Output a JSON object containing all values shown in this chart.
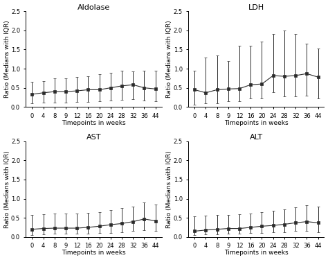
{
  "timepoints": [
    0,
    4,
    8,
    9,
    12,
    16,
    20,
    24,
    28,
    32,
    36,
    44
  ],
  "subplots": [
    {
      "title": "Aldolase",
      "medians": [
        0.33,
        0.37,
        0.4,
        0.4,
        0.42,
        0.45,
        0.45,
        0.5,
        0.55,
        0.58,
        0.5,
        0.47
      ],
      "iqr_low": [
        0.1,
        0.12,
        0.12,
        0.12,
        0.13,
        0.14,
        0.15,
        0.17,
        0.18,
        0.2,
        0.17,
        0.15
      ],
      "iqr_high": [
        0.65,
        0.68,
        0.75,
        0.75,
        0.78,
        0.8,
        0.85,
        0.9,
        0.95,
        0.92,
        0.95,
        0.95
      ]
    },
    {
      "title": "LDH",
      "medians": [
        0.45,
        0.37,
        0.45,
        0.47,
        0.48,
        0.58,
        0.6,
        0.82,
        0.8,
        0.82,
        0.87,
        0.78
      ],
      "iqr_low": [
        0.05,
        0.1,
        0.1,
        0.15,
        0.15,
        0.22,
        0.22,
        0.38,
        0.27,
        0.28,
        0.3,
        0.22
      ],
      "iqr_high": [
        0.95,
        1.3,
        1.35,
        1.2,
        1.6,
        1.6,
        1.7,
        1.9,
        2.0,
        1.9,
        1.65,
        1.52
      ]
    },
    {
      "title": "AST",
      "medians": [
        0.2,
        0.22,
        0.23,
        0.23,
        0.23,
        0.25,
        0.28,
        0.32,
        0.35,
        0.4,
        0.47,
        0.42
      ],
      "iqr_low": [
        0.05,
        0.07,
        0.08,
        0.08,
        0.08,
        0.08,
        0.1,
        0.1,
        0.12,
        0.15,
        0.18,
        0.15
      ],
      "iqr_high": [
        0.58,
        0.6,
        0.62,
        0.62,
        0.62,
        0.63,
        0.65,
        0.7,
        0.75,
        0.8,
        0.9,
        0.85
      ]
    },
    {
      "title": "ALT",
      "medians": [
        0.15,
        0.18,
        0.2,
        0.22,
        0.22,
        0.25,
        0.28,
        0.3,
        0.33,
        0.37,
        0.4,
        0.37
      ],
      "iqr_low": [
        0.05,
        0.07,
        0.07,
        0.08,
        0.08,
        0.1,
        0.1,
        0.12,
        0.12,
        0.15,
        0.15,
        0.13
      ],
      "iqr_high": [
        0.53,
        0.55,
        0.58,
        0.58,
        0.6,
        0.62,
        0.65,
        0.68,
        0.72,
        0.78,
        0.82,
        0.8
      ]
    }
  ],
  "ylabel": "Ratio (Medians with IQR)",
  "xlabel": "Timepoints in weeks",
  "ylim": [
    0.0,
    2.5
  ],
  "yticks": [
    0.0,
    0.5,
    1.0,
    1.5,
    2.0,
    2.5
  ],
  "xtick_labels": [
    "0",
    "4",
    "8",
    "9",
    "12",
    "16",
    "20",
    "24",
    "28",
    "32",
    "36",
    "44"
  ],
  "line_color": "#2b2b2b",
  "marker": "s",
  "marker_size": 2.8,
  "capsize": 1.5,
  "linewidth": 0.8,
  "bg_color": "#ffffff",
  "title_fontsize": 8,
  "axis_label_fontsize": 6.5,
  "tick_fontsize": 6.0
}
